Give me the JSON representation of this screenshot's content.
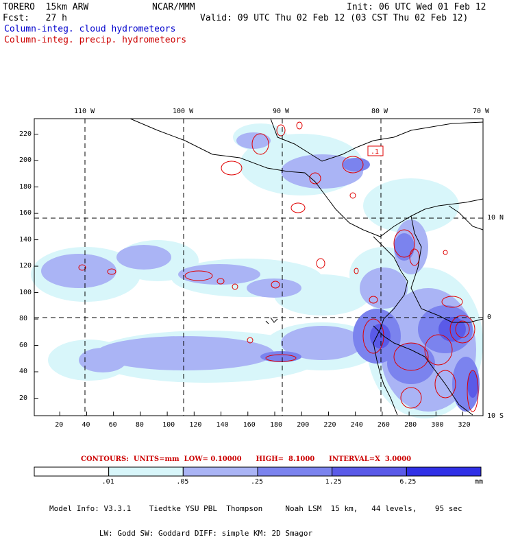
{
  "header": {
    "model_name": "TORERO  15km ARW",
    "center": "NCAR/MMM",
    "init": "Init: 06 UTC Wed 01 Feb 12",
    "fcst": "Fcst:   27 h",
    "valid": "Valid: 09 UTC Thu 02 Feb 12 (03 CST Thu 02 Feb 12)",
    "field_cloud": "Column-integ. cloud hydrometeors",
    "field_precip": "Column-integ. precip. hydrometeors"
  },
  "map": {
    "lon_labels": [
      "110 W",
      "100 W",
      "90 W",
      "80 W",
      "70 W"
    ],
    "lat_labels": [
      "10 N",
      "0",
      "10 S"
    ],
    "y_ticks": [
      "20",
      "40",
      "60",
      "80",
      "100",
      "120",
      "140",
      "160",
      "180",
      "200",
      "220"
    ],
    "x_ticks": [
      "20",
      "40",
      "60",
      "80",
      "100",
      "120",
      "140",
      "160",
      "180",
      "200",
      "220",
      "240",
      "260",
      "280",
      "300",
      "320"
    ],
    "contour_label": ".1"
  },
  "colorbar": {
    "levels": [
      ".01",
      ".05",
      ".25",
      "1.25",
      "6.25"
    ],
    "unit": "mm",
    "colors": [
      "#ffffff",
      "#d8f6fa",
      "#aab4f5",
      "#7b83ee",
      "#5a5ae8",
      "#3030e6"
    ]
  },
  "contours_info": "CONTOURS:  UNITS=mm  LOW= 0.10000      HIGH=  8.1000      INTERVAL=X  3.0000",
  "model_info": {
    "line1": "Model Info: V3.3.1    Tiedtke YSU PBL  Thompson     Noah LSM  15 km,   44 levels,    95 sec",
    "line2": "           LW: Godd SW: Goddard DIFF: simple KM: 2D Smagor"
  }
}
